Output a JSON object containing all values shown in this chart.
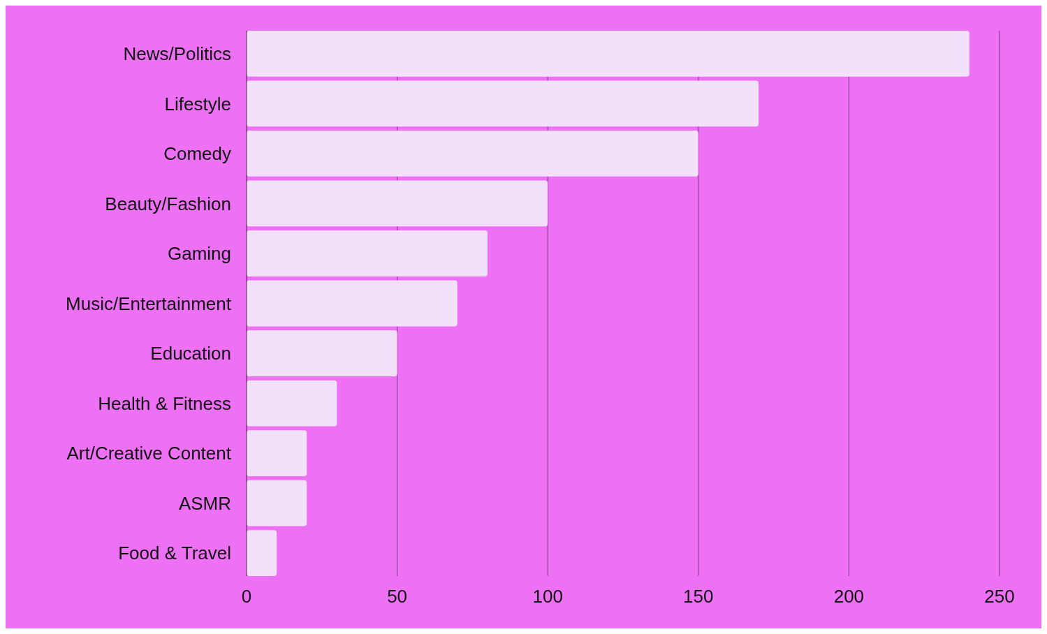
{
  "chart_data": {
    "type": "bar",
    "orientation": "horizontal",
    "categories": [
      "News/Politics",
      "Lifestyle",
      "Comedy",
      "Beauty/Fashion",
      "Gaming",
      "Music/Entertainment",
      "Education",
      "Health & Fitness",
      "Art/Creative Content",
      "ASMR",
      "Food & Travel"
    ],
    "values": [
      240,
      170,
      150,
      100,
      80,
      70,
      50,
      30,
      20,
      20,
      10
    ],
    "color": "#f3e0fb",
    "xlim": [
      0,
      250
    ],
    "xticks": [
      0,
      50,
      100,
      150,
      200,
      250
    ],
    "grid": "x"
  }
}
